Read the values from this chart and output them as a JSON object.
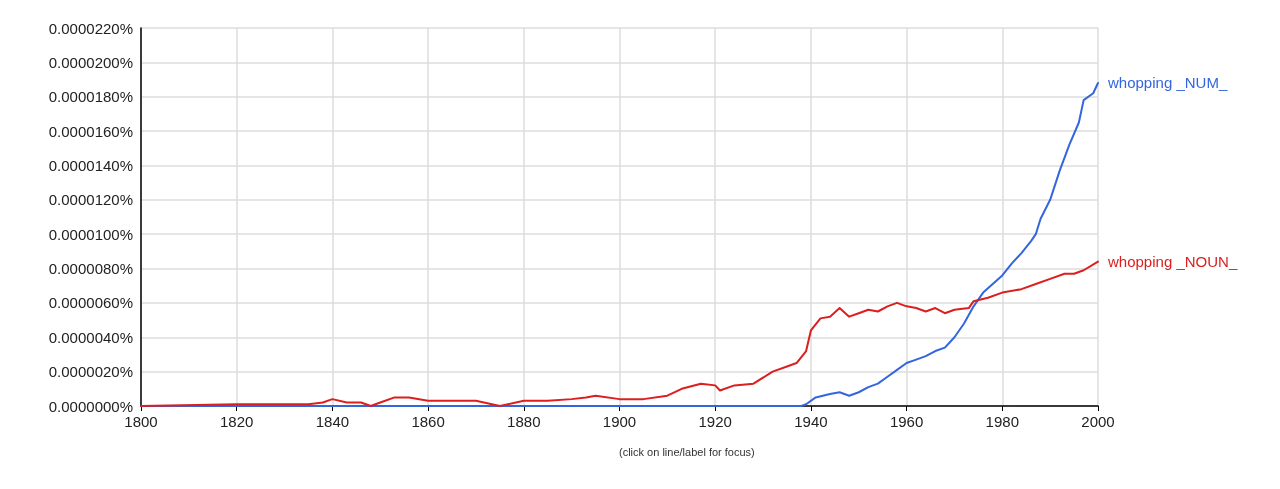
{
  "chart_data": {
    "type": "line",
    "annotations": [
      "(click on line/label for focus)"
    ],
    "series": [
      {
        "name": "whopping _NUM_",
        "color": "#3366dd",
        "x": [
          1800,
          1850,
          1900,
          1938,
          1939,
          1941,
          1944,
          1946,
          1948,
          1950,
          1952,
          1954,
          1956,
          1958,
          1960,
          1962,
          1964,
          1966,
          1968,
          1970,
          1972,
          1974,
          1976,
          1978,
          1980,
          1982,
          1984,
          1986,
          1987,
          1988,
          1990,
          1992,
          1994,
          1996,
          1997,
          1999,
          2000
        ],
        "values": [
          0.0,
          0.0,
          0.0,
          0.0,
          1e-07,
          5e-07,
          7e-07,
          8e-07,
          6e-07,
          8e-07,
          1.1e-06,
          1.3e-06,
          1.7e-06,
          2.1e-06,
          2.5e-06,
          2.7e-06,
          2.9e-06,
          3.2e-06,
          3.4e-06,
          4e-06,
          4.8e-06,
          5.8e-06,
          6.6e-06,
          7.1e-06,
          7.6e-06,
          8.3e-06,
          8.9e-06,
          9.6e-06,
          1e-05,
          1.09e-05,
          1.2e-05,
          1.37e-05,
          1.52e-05,
          1.65e-05,
          1.78e-05,
          1.82e-05,
          1.88e-05
        ]
      },
      {
        "name": "whopping _NOUN_",
        "color": "#dc1e1e",
        "x": [
          1800,
          1820,
          1835,
          1838,
          1840,
          1843,
          1846,
          1848,
          1850,
          1853,
          1856,
          1860,
          1864,
          1870,
          1875,
          1880,
          1885,
          1890,
          1893,
          1895,
          1900,
          1905,
          1910,
          1913,
          1917,
          1920,
          1921,
          1924,
          1928,
          1932,
          1935,
          1937,
          1939,
          1940,
          1942,
          1944,
          1946,
          1948,
          1950,
          1952,
          1954,
          1956,
          1958,
          1960,
          1962,
          1964,
          1966,
          1968,
          1970,
          1973,
          1974,
          1977,
          1980,
          1984,
          1987,
          1990,
          1993,
          1995,
          1997,
          2000
        ],
        "values": [
          0.0,
          1e-07,
          1e-07,
          2e-07,
          4e-07,
          2e-07,
          2e-07,
          0.0,
          2e-07,
          5e-07,
          5e-07,
          3e-07,
          3e-07,
          3e-07,
          0.0,
          3e-07,
          3e-07,
          4e-07,
          5e-07,
          6e-07,
          4e-07,
          4e-07,
          6e-07,
          1e-06,
          1.3e-06,
          1.2e-06,
          9e-07,
          1.2e-06,
          1.3e-06,
          2e-06,
          2.3e-06,
          2.5e-06,
          3.2e-06,
          4.4e-06,
          5.1e-06,
          5.2e-06,
          5.7e-06,
          5.2e-06,
          5.4e-06,
          5.6e-06,
          5.5e-06,
          5.8e-06,
          6e-06,
          5.8e-06,
          5.7e-06,
          5.5e-06,
          5.7e-06,
          5.4e-06,
          5.6e-06,
          5.7e-06,
          6.1e-06,
          6.3e-06,
          6.6e-06,
          6.8e-06,
          7.1e-06,
          7.4e-06,
          7.7e-06,
          7.7e-06,
          7.9e-06,
          8.4e-06
        ]
      }
    ],
    "xlim": [
      1800,
      2000
    ],
    "xticks": [
      1800,
      1820,
      1840,
      1860,
      1880,
      1900,
      1920,
      1940,
      1960,
      1980,
      2000
    ],
    "ylim": [
      0,
      2.2e-05
    ],
    "yticks": [
      {
        "value": 0,
        "label": "0.0000000%"
      },
      {
        "value": 2e-06,
        "label": "0.0000020%"
      },
      {
        "value": 4e-06,
        "label": "0.0000040%"
      },
      {
        "value": 6e-06,
        "label": "0.0000060%"
      },
      {
        "value": 8e-06,
        "label": "0.0000080%"
      },
      {
        "value": 1e-05,
        "label": "0.0000100%"
      },
      {
        "value": 1.2e-05,
        "label": "0.0000120%"
      },
      {
        "value": 1.4e-05,
        "label": "0.0000140%"
      },
      {
        "value": 1.6e-05,
        "label": "0.0000160%"
      },
      {
        "value": 1.8e-05,
        "label": "0.0000180%"
      },
      {
        "value": 2e-05,
        "label": "0.0000200%"
      },
      {
        "value": 2.2e-05,
        "label": "0.0000220%"
      }
    ],
    "grid": true,
    "legend": false,
    "marker": "none",
    "line_style": "solid"
  }
}
